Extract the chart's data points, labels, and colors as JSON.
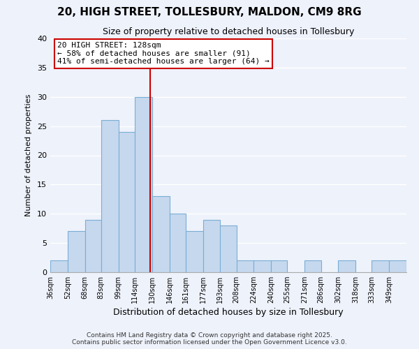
{
  "title": "20, HIGH STREET, TOLLESBURY, MALDON, CM9 8RG",
  "subtitle": "Size of property relative to detached houses in Tollesbury",
  "xlabel": "Distribution of detached houses by size in Tollesbury",
  "ylabel": "Number of detached properties",
  "bar_color": "#c5d8ee",
  "bar_edge_color": "#7aadd4",
  "background_color": "#eef2fb",
  "grid_color": "#ffffff",
  "bin_labels": [
    "36sqm",
    "52sqm",
    "68sqm",
    "83sqm",
    "99sqm",
    "114sqm",
    "130sqm",
    "146sqm",
    "161sqm",
    "177sqm",
    "193sqm",
    "208sqm",
    "224sqm",
    "240sqm",
    "255sqm",
    "271sqm",
    "286sqm",
    "302sqm",
    "318sqm",
    "333sqm",
    "349sqm"
  ],
  "bin_edges": [
    36,
    52,
    68,
    83,
    99,
    114,
    130,
    146,
    161,
    177,
    193,
    208,
    224,
    240,
    255,
    271,
    286,
    302,
    318,
    333,
    349,
    365
  ],
  "bar_heights": [
    2,
    7,
    9,
    26,
    24,
    30,
    13,
    10,
    7,
    9,
    8,
    2,
    2,
    2,
    0,
    2,
    0,
    2,
    0,
    2,
    2
  ],
  "ylim": [
    0,
    40
  ],
  "yticks": [
    0,
    5,
    10,
    15,
    20,
    25,
    30,
    35,
    40
  ],
  "property_line_x": 128,
  "annotation_line1": "20 HIGH STREET: 128sqm",
  "annotation_line2": "← 58% of detached houses are smaller (91)",
  "annotation_line3": "41% of semi-detached houses are larger (64) →",
  "annotation_box_color": "#ffffff",
  "annotation_box_edge": "#cc0000",
  "property_line_color": "#cc0000",
  "footer_line1": "Contains HM Land Registry data © Crown copyright and database right 2025.",
  "footer_line2": "Contains public sector information licensed under the Open Government Licence v3.0."
}
